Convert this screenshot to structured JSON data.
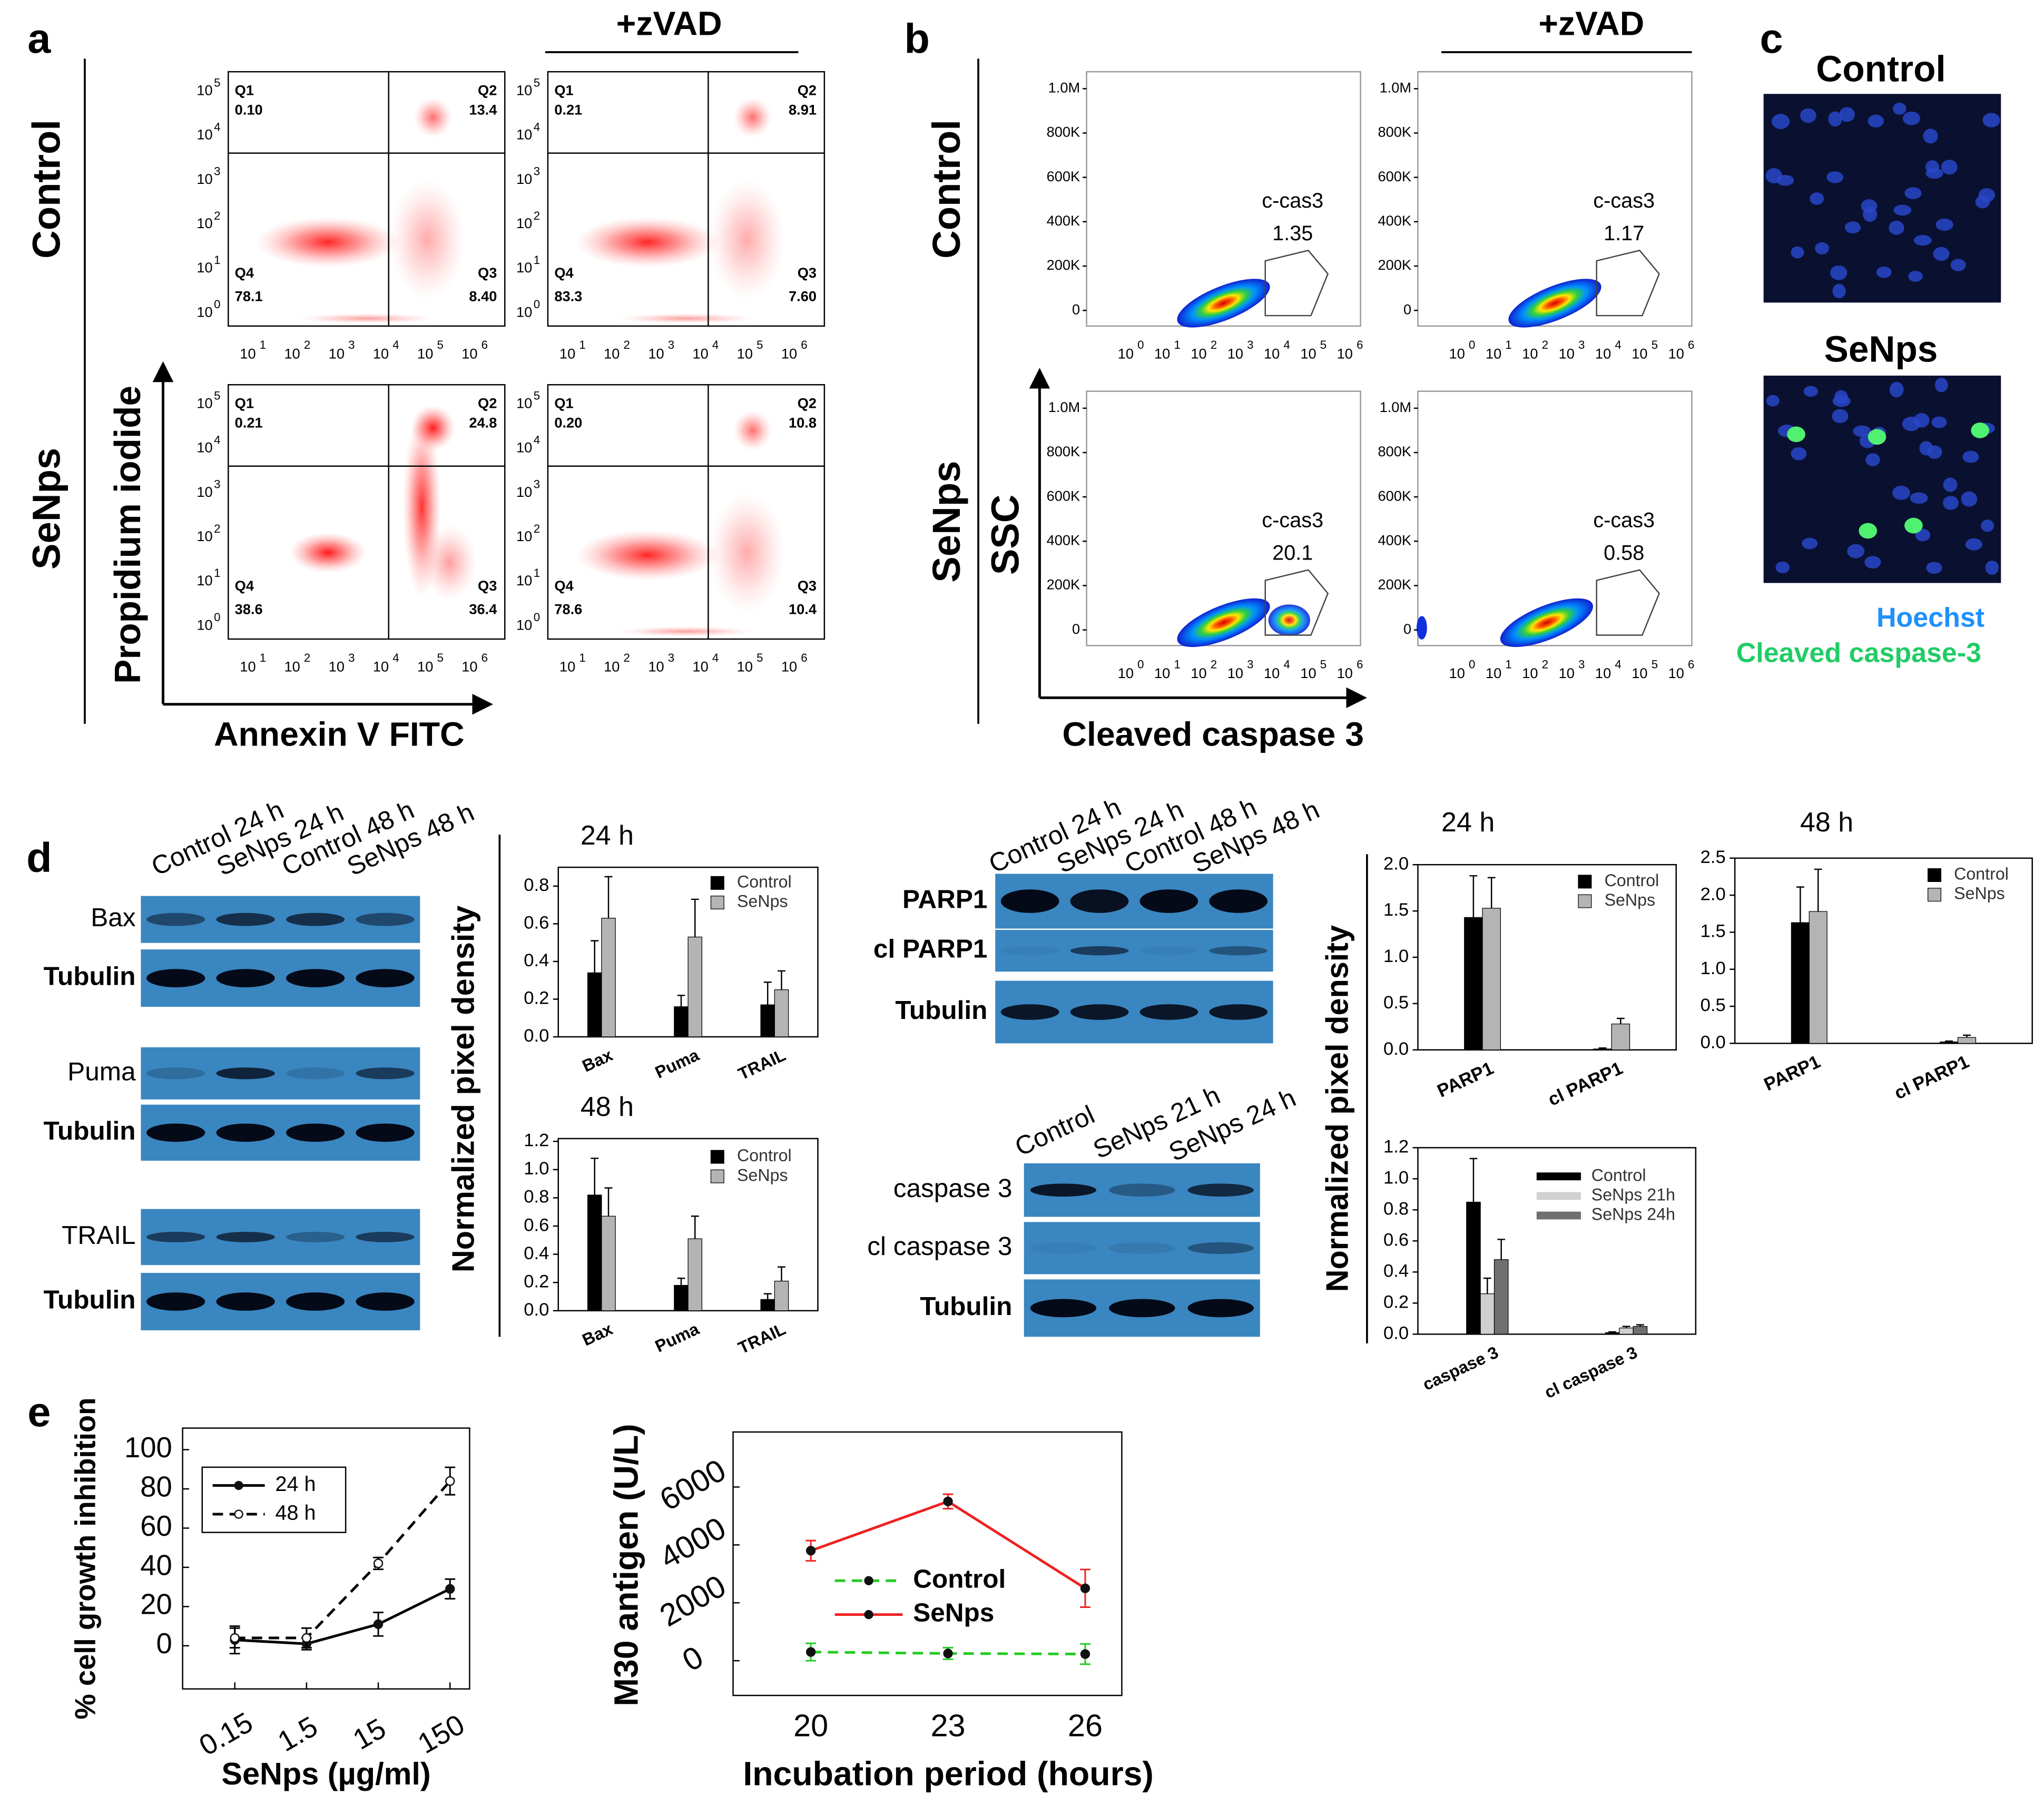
{
  "panel_labels": [
    "a",
    "b",
    "c",
    "d",
    "e"
  ],
  "annexin": {
    "treatment": "+zVAD",
    "rows": [
      "Control",
      "SeNps"
    ],
    "y_label": "Propidium iodide",
    "x_label": "Annexin V FITC",
    "tick_base": "10",
    "x_exponents": [
      "1",
      "2",
      "3",
      "4",
      "5",
      "6"
    ],
    "y_exponents": [
      "0",
      "1",
      "2",
      "3",
      "4",
      "5"
    ],
    "quadrants": [
      "Q1",
      "Q2",
      "Q3",
      "Q4"
    ],
    "plots": [
      {
        "values": [
          "0.10",
          "13.4",
          "8.40",
          "78.1"
        ]
      },
      {
        "values": [
          "0.21",
          "8.91",
          "7.60",
          "83.3"
        ]
      },
      {
        "values": [
          "0.21",
          "24.8",
          "36.4",
          "38.6"
        ]
      },
      {
        "values": [
          "0.20",
          "10.8",
          "10.4",
          "78.6"
        ]
      }
    ]
  },
  "caspase_flow": {
    "treatment": "+zVAD",
    "rows": [
      "Control",
      "SeNps"
    ],
    "y_label": "SSC",
    "x_label": "Cleaved caspase 3",
    "y_ticks": [
      "0",
      "200K",
      "400K",
      "600K",
      "800K",
      "1.0M"
    ],
    "tick_base": "10",
    "x_exponents": [
      "0",
      "1",
      "2",
      "3",
      "4",
      "5",
      "6"
    ],
    "gate": "c-cas3",
    "plots": [
      "1.35",
      "1.17",
      "20.1",
      "0.58"
    ]
  },
  "microscopy": {
    "images": [
      "Control",
      "SeNps"
    ],
    "stains": [
      "Hoechst",
      "Cleaved caspase-3"
    ]
  },
  "blots": [
    {
      "lanes": [
        "Control 24 h",
        "SeNps 24 h",
        "Control 48 h",
        "SeNps 48 h"
      ],
      "rows": [
        "Bax",
        "Tubulin",
        "Puma",
        "Tubulin",
        "TRAIL",
        "Tubulin"
      ]
    },
    {
      "lanes": [
        "Control 24 h",
        "SeNps 24 h",
        "Control 48 h",
        "SeNps 48 h"
      ],
      "rows": [
        "PARP1",
        "cl PARP1",
        "Tubulin"
      ]
    },
    {
      "lanes": [
        "Control",
        "SeNps 21 h",
        "SeNps 24 h"
      ],
      "rows": [
        "caspase 3",
        "cl caspase 3",
        "Tubulin"
      ]
    }
  ],
  "chart_data": [
    {
      "type": "bar",
      "title": "24 h",
      "y_label": "Normalized pixel density",
      "categories": [
        "Bax",
        "Puma",
        "TRAIL"
      ],
      "series": [
        {
          "name": "Control",
          "color": "#000000",
          "values": [
            0.34,
            0.16,
            0.17
          ],
          "errors": [
            0.17,
            0.06,
            0.12
          ]
        },
        {
          "name": "SeNps",
          "color": "#b4b4b4",
          "values": [
            0.63,
            0.53,
            0.25
          ],
          "errors": [
            0.22,
            0.2,
            0.1
          ]
        }
      ],
      "ylim": [
        0,
        0.9
      ],
      "yticks": [
        {
          "value": 0,
          "label": "0.0"
        },
        0.2,
        0.4,
        0.6,
        0.8
      ],
      "legend": "upper right"
    },
    {
      "type": "bar",
      "title": "48 h",
      "categories": [
        "Bax",
        "Puma",
        "TRAIL"
      ],
      "series": [
        {
          "name": "Control",
          "color": "#000000",
          "values": [
            0.82,
            0.18,
            0.08
          ],
          "errors": [
            0.26,
            0.05,
            0.04
          ]
        },
        {
          "name": "SeNps",
          "color": "#b4b4b4",
          "values": [
            0.67,
            0.51,
            0.21
          ],
          "errors": [
            0.2,
            0.16,
            0.1
          ]
        }
      ],
      "ylim": [
        0,
        1.22
      ],
      "yticks": [
        {
          "value": 0,
          "label": "0.0"
        },
        0.2,
        0.4,
        0.6,
        0.8,
        {
          "value": 1,
          "label": "1.0"
        },
        1.2
      ],
      "legend": "upper right"
    },
    {
      "type": "bar",
      "title": "24 h",
      "y_label": "Normalized pixel density",
      "categories": [
        "PARP1",
        "cl PARP1"
      ],
      "series": [
        {
          "name": "Control",
          "color": "#000000",
          "values": [
            1.43,
            0.01
          ],
          "errors": [
            0.45,
            0.01
          ]
        },
        {
          "name": "SeNps",
          "color": "#b4b4b4",
          "values": [
            1.53,
            0.28
          ],
          "errors": [
            0.33,
            0.06
          ]
        }
      ],
      "ylim": [
        0,
        2
      ],
      "yticks": [
        {
          "value": 0,
          "label": "0.0"
        },
        0.5,
        {
          "value": 1,
          "label": "1.0"
        },
        1.5,
        {
          "value": 2,
          "label": "2.0"
        }
      ],
      "legend": "upper right"
    },
    {
      "type": "bar",
      "title": "48 h",
      "categories": [
        "PARP1",
        "cl PARP1"
      ],
      "series": [
        {
          "name": "Control",
          "color": "#000000",
          "values": [
            1.63,
            0.02
          ],
          "errors": [
            0.48,
            0.01
          ]
        },
        {
          "name": "SeNps",
          "color": "#b4b4b4",
          "values": [
            1.78,
            0.08
          ],
          "errors": [
            0.57,
            0.03
          ]
        }
      ],
      "ylim": [
        0,
        2.5
      ],
      "yticks": [
        {
          "value": 0,
          "label": "0.0"
        },
        0.5,
        {
          "value": 1,
          "label": "1.0"
        },
        1.5,
        {
          "value": 2,
          "label": "2.0"
        },
        2.5
      ],
      "legend": "upper right"
    },
    {
      "type": "bar",
      "categories": [
        "caspase 3",
        "cl caspase 3"
      ],
      "series": [
        {
          "name": "Control",
          "color": "#000000",
          "values": [
            0.85,
            0.01
          ],
          "errors": [
            0.28,
            0.005
          ]
        },
        {
          "name": "SeNps 21h",
          "color": "#d0d0d0",
          "values": [
            0.26,
            0.04
          ],
          "errors": [
            0.1,
            0.01
          ]
        },
        {
          "name": "SeNps 24h",
          "color": "#707070",
          "values": [
            0.48,
            0.05
          ],
          "errors": [
            0.13,
            0.01
          ]
        }
      ],
      "ylim": [
        0,
        1.2
      ],
      "yticks": [
        {
          "value": 0,
          "label": "0.0"
        },
        0.2,
        0.4,
        0.6,
        0.8,
        {
          "value": 1,
          "label": "1.0"
        },
        1.2
      ],
      "legend": "upper right"
    },
    {
      "type": "line",
      "x_label": "SeNps (µg/ml)",
      "y_label": "% cell growth inhibition",
      "categories": [
        "0.15",
        "1.5",
        "15",
        "150"
      ],
      "series": [
        {
          "name": "24 h",
          "color": "#000000",
          "line_style": "solid",
          "marker": "filled",
          "values": [
            3,
            1,
            11,
            29
          ],
          "errors": [
            7,
            3,
            6,
            5
          ]
        },
        {
          "name": "48 h",
          "color": "#000000",
          "line_style": "dashed",
          "marker": "open",
          "values": [
            4,
            4,
            42,
            84
          ],
          "errors": [
            5,
            5,
            3,
            7
          ]
        }
      ],
      "ylim": [
        -22,
        111
      ],
      "yticks": [
        0,
        20,
        40,
        60,
        80,
        100
      ],
      "legend": "upper left"
    },
    {
      "type": "line",
      "x_label": "Incubation period (hours)",
      "y_label": "M30 antigen (U/L)",
      "x": [
        20,
        23,
        26
      ],
      "xlim": [
        18.3,
        26.8
      ],
      "xticks": [
        20,
        23,
        26
      ],
      "series": [
        {
          "name": "Control",
          "color": "#22cc22",
          "line_style": "dashed",
          "marker": "filled",
          "values": [
            300,
            250,
            230
          ],
          "errors": [
            300,
            200,
            350
          ]
        },
        {
          "name": "SeNps",
          "color": "#ee2222",
          "line_style": "solid",
          "marker": "filled",
          "values": [
            3800,
            5500,
            2500
          ],
          "errors": [
            350,
            250,
            650
          ]
        }
      ],
      "ylim": [
        -1200,
        7900
      ],
      "yticks": [
        0,
        2000,
        4000,
        6000
      ],
      "legend": "center left"
    }
  ]
}
